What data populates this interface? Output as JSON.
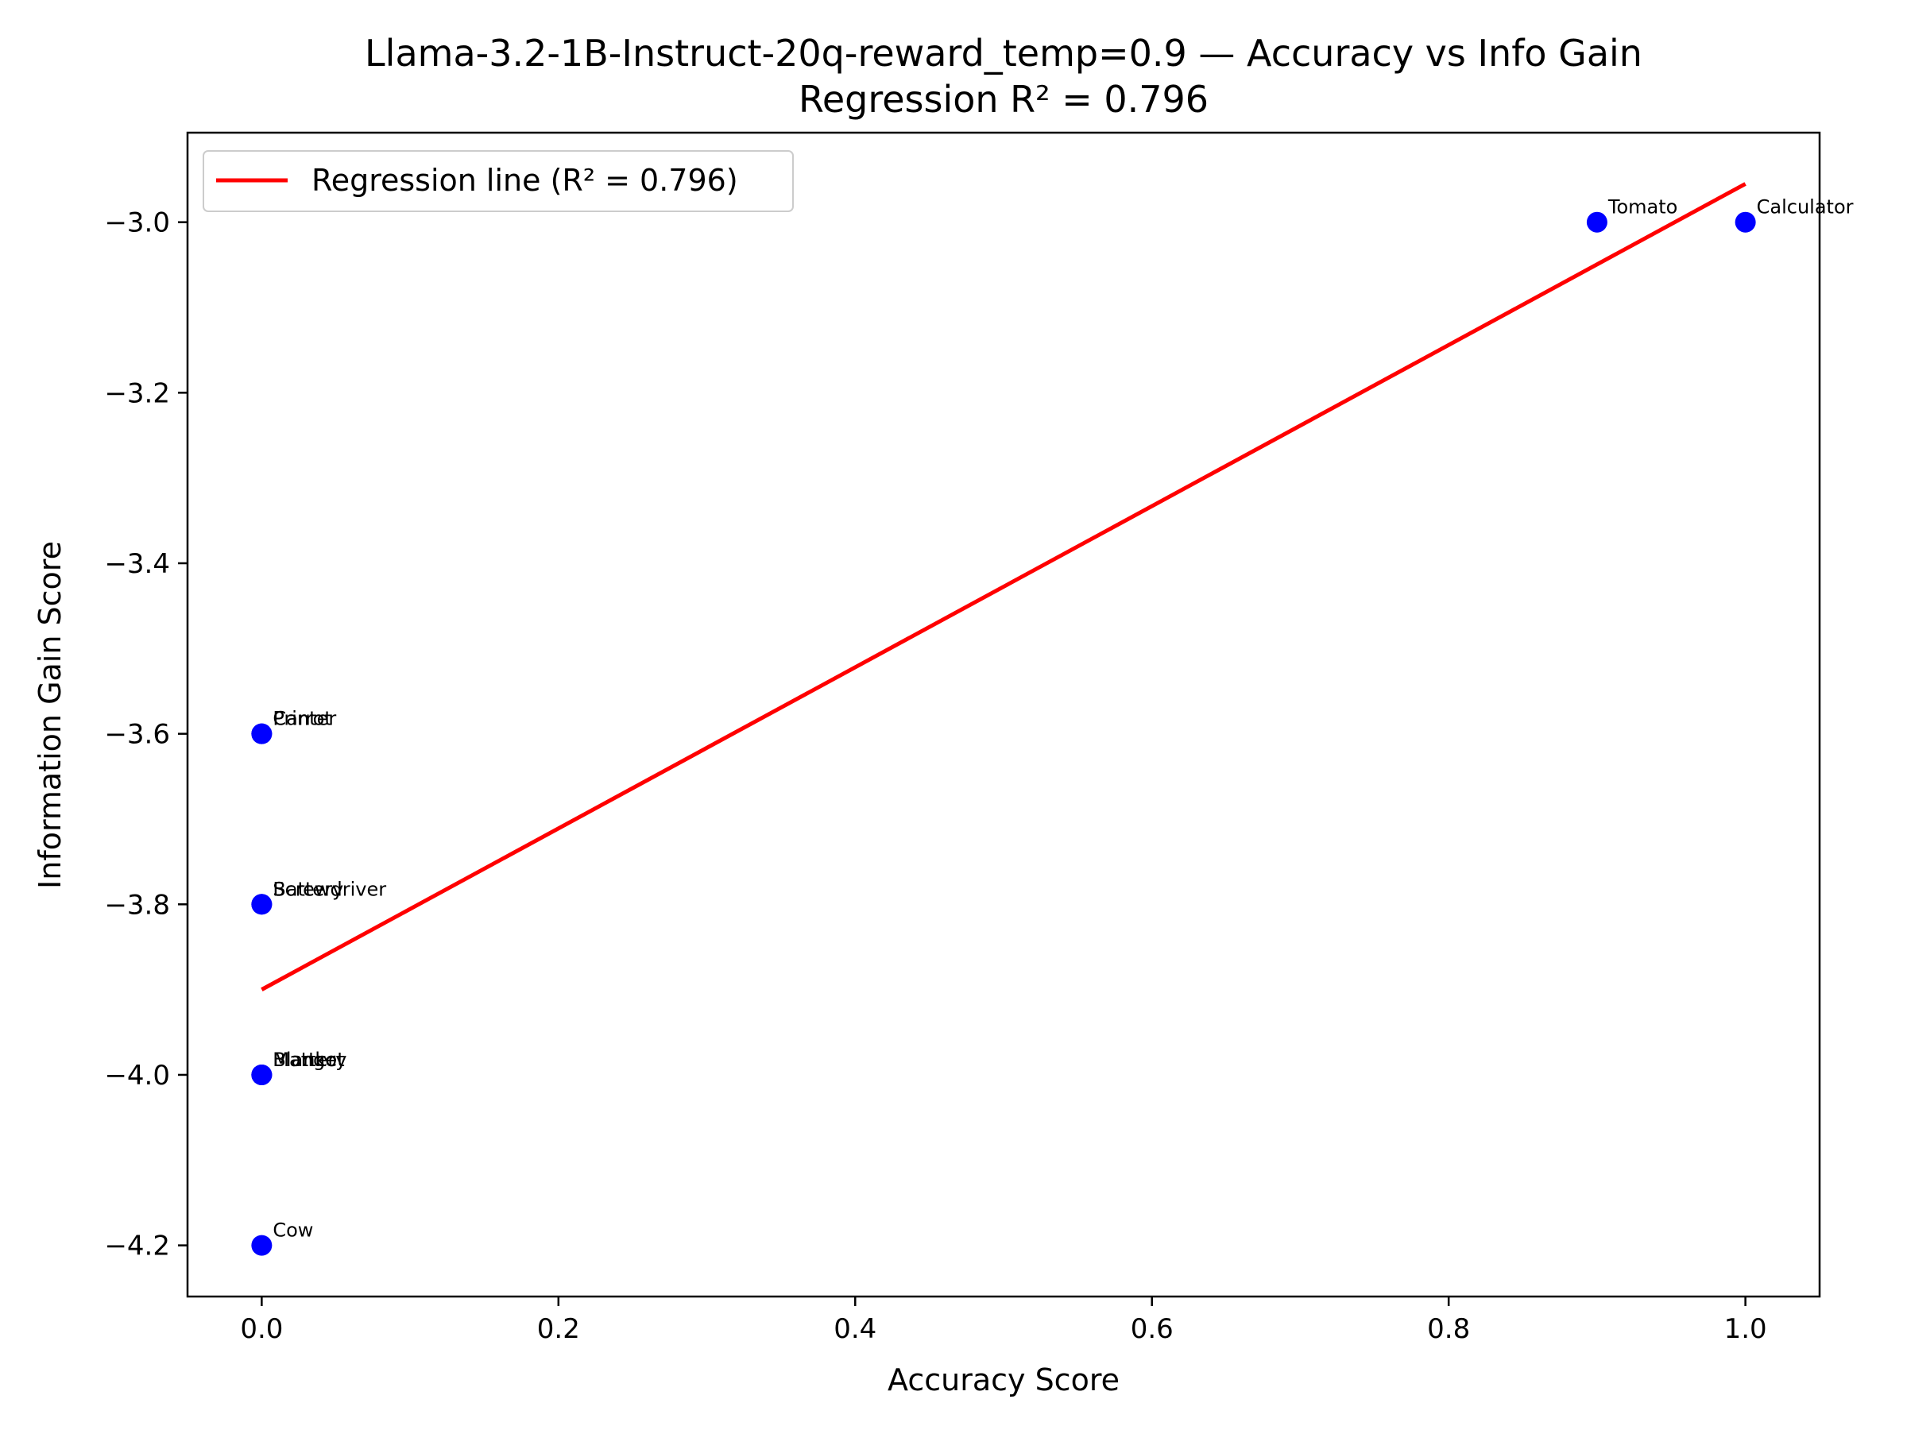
{
  "chart_data": {
    "type": "scatter",
    "title": "Llama-3.2-1B-Instruct-20q-reward_temp=0.9 — Accuracy vs Info Gain",
    "subtitle": "Regression R² = 0.796",
    "xlabel": "Accuracy Score",
    "ylabel": "Information Gain Score",
    "xlim": [
      -0.05,
      1.05
    ],
    "ylim": [
      -4.26,
      -2.895
    ],
    "xticks": [
      0.0,
      0.2,
      0.4,
      0.6,
      0.8,
      1.0
    ],
    "xtick_labels": [
      "0.0",
      "0.2",
      "0.4",
      "0.6",
      "0.8",
      "1.0"
    ],
    "yticks": [
      -3.0,
      -3.2,
      -3.4,
      -3.6,
      -3.8,
      -4.0,
      -4.2
    ],
    "ytick_labels": [
      "−3.0",
      "−3.2",
      "−3.4",
      "−3.6",
      "−3.8",
      "−4.0",
      "−4.2"
    ],
    "grid": false,
    "legend_position": "top-left",
    "point_color": "#0000ff",
    "line_color": "#ff0000",
    "points": [
      {
        "label": "Tomato",
        "x": 0.9,
        "y": -3.0
      },
      {
        "label": "Calculator",
        "x": 1.0,
        "y": -3.0
      },
      {
        "label": "Printer",
        "x": 0.0,
        "y": -3.6
      },
      {
        "label": "Carrot",
        "x": 0.0,
        "y": -3.6
      },
      {
        "label": "Screwdriver",
        "x": 0.0,
        "y": -3.8
      },
      {
        "label": "Battery",
        "x": 0.0,
        "y": -3.8
      },
      {
        "label": "Mattery",
        "x": 0.0,
        "y": -4.0
      },
      {
        "label": "Blanket",
        "x": 0.0,
        "y": -4.0
      },
      {
        "label": "Mango",
        "x": 0.0,
        "y": -4.0
      },
      {
        "label": "Cow",
        "x": 0.0,
        "y": -4.2
      }
    ],
    "regression": {
      "label": "Regression line (R² = 0.796)",
      "x": [
        0.0,
        1.0
      ],
      "y": [
        -3.9,
        -2.955
      ]
    }
  }
}
